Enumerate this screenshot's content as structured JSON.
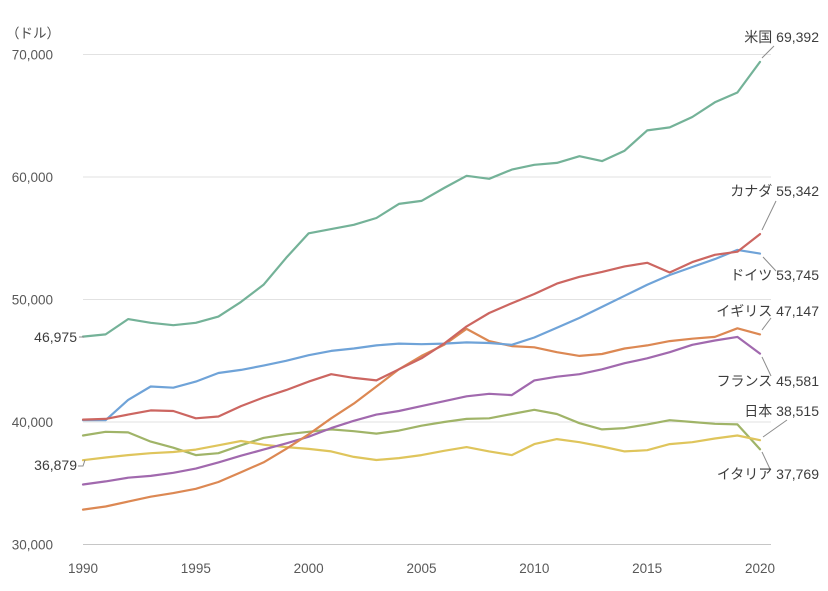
{
  "chart_data": {
    "type": "line",
    "title": "",
    "unit_label": "（ドル）",
    "xlabel": "",
    "ylabel": "",
    "xlim": [
      1990,
      2020
    ],
    "ylim": [
      30000,
      70000
    ],
    "grid": "horizontal",
    "legend_position": "right-end-labels",
    "x_ticks": [
      1990,
      1995,
      2000,
      2005,
      2010,
      2015,
      2020
    ],
    "y_ticks": [
      {
        "value": 30000,
        "label": "30,000"
      },
      {
        "value": 40000,
        "label": "40,000"
      },
      {
        "value": 50000,
        "label": "50,000"
      },
      {
        "value": 60000,
        "label": "60,000"
      },
      {
        "value": 70000,
        "label": "70,000"
      }
    ],
    "x": [
      1990,
      1991,
      1992,
      1993,
      1994,
      1995,
      1996,
      1997,
      1998,
      1999,
      2000,
      2001,
      2002,
      2003,
      2004,
      2005,
      2006,
      2007,
      2008,
      2009,
      2010,
      2011,
      2012,
      2013,
      2014,
      2015,
      2016,
      2017,
      2018,
      2019,
      2020
    ],
    "series": [
      {
        "key": "us",
        "name": "米国",
        "end_value": "69,392",
        "label": "米国 69,392",
        "color": "#74b298",
        "values": [
          46975,
          47150,
          48400,
          48100,
          47900,
          48100,
          48600,
          49800,
          51200,
          53400,
          55400,
          55750,
          56100,
          56650,
          57800,
          58050,
          59100,
          60100,
          59850,
          60600,
          61000,
          61150,
          61700,
          61300,
          62150,
          63800,
          64050,
          64900,
          66100,
          66900,
          69392
        ]
      },
      {
        "key": "canada",
        "name": "カナダ",
        "end_value": "55,342",
        "label": "カナダ 55,342",
        "color": "#cc6661",
        "values": [
          40200,
          40250,
          40600,
          40950,
          40900,
          40300,
          40450,
          41300,
          42000,
          42600,
          43300,
          43900,
          43600,
          43400,
          44300,
          45200,
          46400,
          47800,
          48900,
          49700,
          50450,
          51300,
          51850,
          52250,
          52700,
          53000,
          52200,
          53050,
          53650,
          53900,
          55342
        ]
      },
      {
        "key": "germany",
        "name": "ドイツ",
        "end_value": "53,745",
        "label": "ドイツ 53,745",
        "color": "#6fa3d8",
        "values": [
          40150,
          40150,
          41800,
          42900,
          42800,
          43300,
          44000,
          44250,
          44600,
          45000,
          45450,
          45800,
          46000,
          46250,
          46400,
          46350,
          46400,
          46500,
          46450,
          46300,
          46900,
          47700,
          48500,
          49400,
          50300,
          51200,
          52000,
          52650,
          53300,
          54050,
          53745
        ]
      },
      {
        "key": "uk",
        "name": "イギリス",
        "end_value": "47,147",
        "label": "イギリス 47,147",
        "color": "#dc8853",
        "values": [
          32850,
          33100,
          33500,
          33900,
          34200,
          34550,
          35100,
          35900,
          36700,
          37800,
          39000,
          40300,
          41500,
          42900,
          44300,
          45400,
          46300,
          47600,
          46600,
          46200,
          46100,
          45700,
          45400,
          45550,
          46000,
          46250,
          46600,
          46800,
          46950,
          47650,
          47147
        ]
      },
      {
        "key": "france",
        "name": "フランス",
        "end_value": "45,581",
        "label": "フランス 45,581",
        "color": "#a169ae",
        "values": [
          34900,
          35150,
          35450,
          35600,
          35850,
          36200,
          36700,
          37250,
          37750,
          38250,
          38800,
          39500,
          40100,
          40600,
          40900,
          41300,
          41700,
          42100,
          42300,
          42200,
          43400,
          43700,
          43900,
          44300,
          44800,
          45200,
          45700,
          46300,
          46650,
          46950,
          45581
        ]
      },
      {
        "key": "japan",
        "name": "日本",
        "end_value": "38,515",
        "label": "日本 38,515",
        "color": "#dfc55c",
        "values": [
          36879,
          37100,
          37300,
          37450,
          37550,
          37750,
          38100,
          38450,
          38150,
          37950,
          37800,
          37600,
          37150,
          36900,
          37050,
          37300,
          37650,
          37950,
          37600,
          37300,
          38200,
          38600,
          38350,
          38000,
          37600,
          37700,
          38200,
          38350,
          38650,
          38900,
          38515
        ]
      },
      {
        "key": "italy",
        "name": "イタリア",
        "end_value": "37,769",
        "label": "イタリア 37,769",
        "color": "#a0b468",
        "values": [
          38900,
          39200,
          39150,
          38400,
          37900,
          37300,
          37450,
          38100,
          38700,
          39000,
          39200,
          39400,
          39250,
          39050,
          39300,
          39700,
          40000,
          40250,
          40300,
          40650,
          41000,
          40650,
          39900,
          39400,
          39500,
          39800,
          40150,
          40000,
          39850,
          39800,
          37769
        ]
      }
    ],
    "annotations": [
      {
        "key": "us-start",
        "text": "46,975",
        "series": "米国",
        "at_year": 1990,
        "value": 46975
      },
      {
        "key": "japan-start",
        "text": "36,879",
        "series": "日本",
        "at_year": 1990,
        "value": 36879
      }
    ]
  }
}
